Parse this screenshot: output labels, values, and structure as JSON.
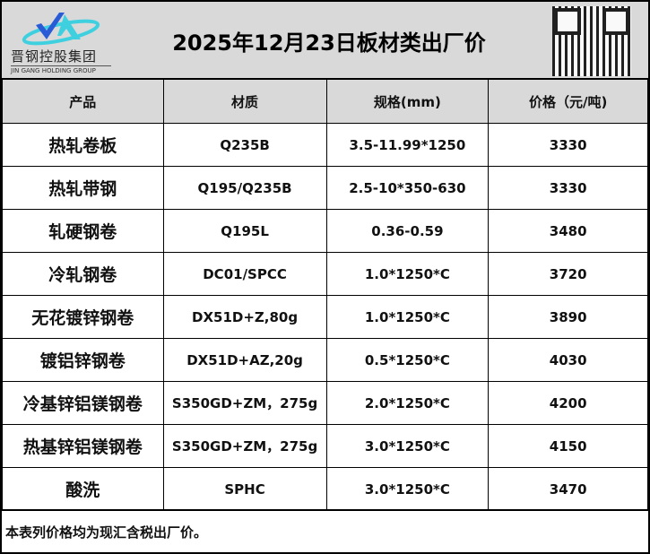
{
  "header": {
    "logo_cn": "晋钢控股集团",
    "logo_en": "JIN GANG HOLDING GROUP",
    "title": "2025年12月23日板材类出厂价"
  },
  "table": {
    "columns": [
      "产品",
      "材质",
      "规格(mm)",
      "价格（元/吨)"
    ],
    "rows": [
      [
        "热轧卷板",
        "Q235B",
        "3.5-11.99*1250",
        "3330"
      ],
      [
        "热轧带钢",
        "Q195/Q235B",
        "2.5-10*350-630",
        "3330"
      ],
      [
        "轧硬钢卷",
        "Q195L",
        "0.36-0.59",
        "3480"
      ],
      [
        "冷轧钢卷",
        "DC01/SPCC",
        "1.0*1250*C",
        "3720"
      ],
      [
        "无花镀锌钢卷",
        "DX51D+Z,80g",
        "1.0*1250*C",
        "3890"
      ],
      [
        "镀铝锌钢卷",
        "DX51D+AZ,20g",
        "0.5*1250*C",
        "4030"
      ],
      [
        "冷基锌铝镁钢卷",
        "S350GD+ZM，275g",
        "2.0*1250*C",
        "4200"
      ],
      [
        "热基锌铝镁钢卷",
        "S350GD+ZM，275g",
        "3.0*1250*C",
        "4150"
      ],
      [
        "酸洗",
        "SPHC",
        "3.0*1250*C",
        "3470"
      ]
    ]
  },
  "footer": {
    "note": "本表列价格均为现汇含税出厂价。"
  },
  "colors": {
    "header_bg": "#d9d9d9",
    "logo_blue": "#2a5bd7",
    "logo_cyan": "#3fd0e0"
  }
}
